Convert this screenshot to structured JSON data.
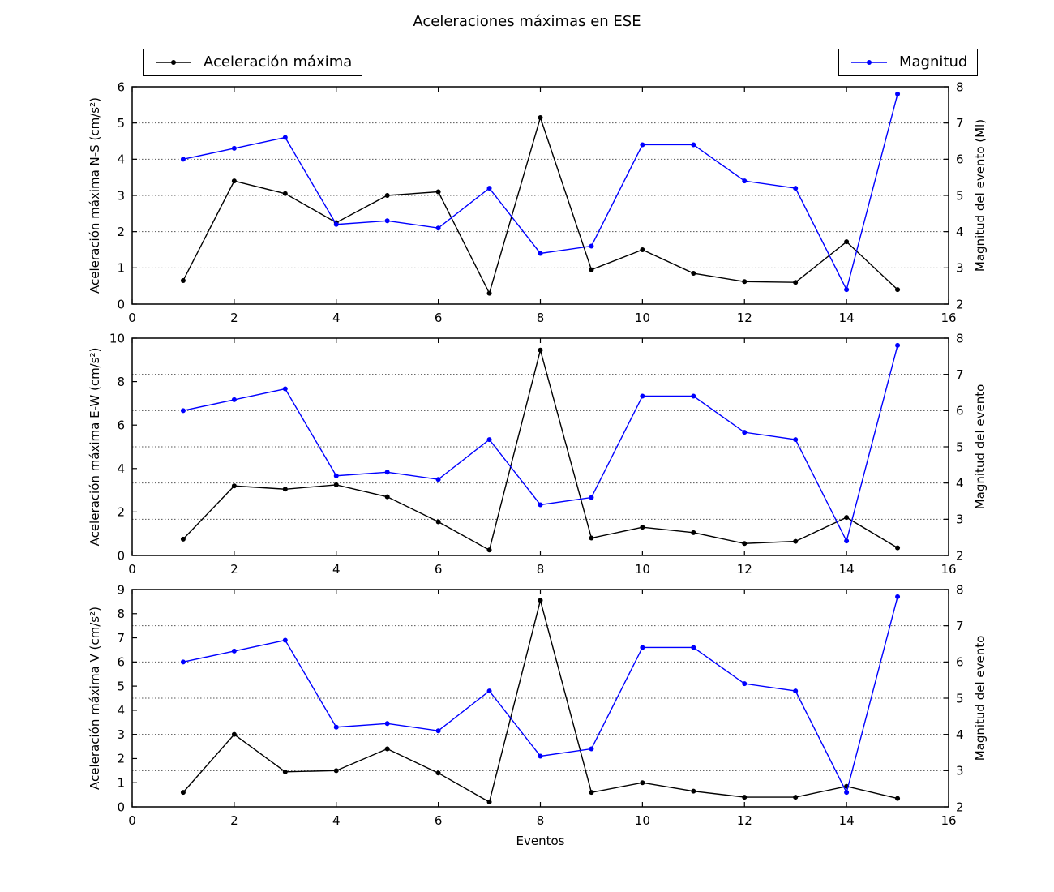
{
  "figure": {
    "title": "Aceleraciones máximas en ESE",
    "xlabel": "Eventos",
    "background": "#ffffff",
    "legends": [
      {
        "label": "Aceleración máxima",
        "color": "#000000",
        "marker": "circle"
      },
      {
        "label": "Magnitud",
        "color": "#0000ff",
        "marker": "circle"
      }
    ]
  },
  "chart_data": [
    {
      "type": "line",
      "subplot": "N-S",
      "ylabel_left": "Aceleración máxima N-S (cm/s²)",
      "ylabel_right": "Magnitud del evento (Ml)",
      "xlabel": "",
      "xlim": [
        0,
        16
      ],
      "xticks": [
        0,
        2,
        4,
        6,
        8,
        10,
        12,
        14,
        16
      ],
      "ylim_left": [
        0,
        6
      ],
      "yticks_left": [
        0,
        1,
        2,
        3,
        4,
        5,
        6
      ],
      "ylim_right": [
        2,
        8
      ],
      "yticks_right": [
        2,
        3,
        4,
        5,
        6,
        7,
        8
      ],
      "grid_right_ticks": [
        3,
        4,
        5,
        6,
        7
      ],
      "grid_style": "dotted",
      "x": [
        1,
        2,
        3,
        4,
        5,
        6,
        7,
        8,
        9,
        10,
        11,
        12,
        13,
        14,
        15
      ],
      "series": [
        {
          "name": "Aceleración máxima",
          "axis": "left",
          "color": "#000000",
          "marker": "circle",
          "values": [
            0.65,
            3.4,
            3.05,
            2.25,
            3.0,
            3.1,
            0.3,
            5.15,
            0.95,
            1.5,
            0.85,
            0.62,
            0.6,
            1.72,
            0.4
          ]
        },
        {
          "name": "Magnitud",
          "axis": "right",
          "color": "#0000ff",
          "marker": "circle",
          "values": [
            6.0,
            6.3,
            6.6,
            4.2,
            4.3,
            4.1,
            5.2,
            3.4,
            3.6,
            6.4,
            6.4,
            5.4,
            5.2,
            2.4,
            7.8
          ]
        }
      ]
    },
    {
      "type": "line",
      "subplot": "E-W",
      "ylabel_left": "Aceleración máxima E-W (cm/s²)",
      "ylabel_right": "Magnitud del evento",
      "xlabel": "",
      "xlim": [
        0,
        16
      ],
      "xticks": [
        0,
        2,
        4,
        6,
        8,
        10,
        12,
        14,
        16
      ],
      "ylim_left": [
        0,
        10
      ],
      "yticks_left": [
        0,
        2,
        4,
        6,
        8,
        10
      ],
      "ylim_right": [
        2,
        8
      ],
      "yticks_right": [
        2,
        3,
        4,
        5,
        6,
        7,
        8
      ],
      "grid_right_ticks": [
        3,
        4,
        5,
        6,
        7
      ],
      "grid_style": "dotted",
      "x": [
        1,
        2,
        3,
        4,
        5,
        6,
        7,
        8,
        9,
        10,
        11,
        12,
        13,
        14,
        15
      ],
      "series": [
        {
          "name": "Aceleración máxima",
          "axis": "left",
          "color": "#000000",
          "marker": "circle",
          "values": [
            0.75,
            3.2,
            3.05,
            3.25,
            2.7,
            1.55,
            0.25,
            9.45,
            0.8,
            1.3,
            1.05,
            0.55,
            0.65,
            1.75,
            0.35
          ]
        },
        {
          "name": "Magnitud",
          "axis": "right",
          "color": "#0000ff",
          "marker": "circle",
          "values": [
            6.0,
            6.3,
            6.6,
            4.2,
            4.3,
            4.1,
            5.2,
            3.4,
            3.6,
            6.4,
            6.4,
            5.4,
            5.2,
            2.4,
            7.8
          ]
        }
      ]
    },
    {
      "type": "line",
      "subplot": "V",
      "ylabel_left": "Aceleración máxima V (cm/s²)",
      "ylabel_right": "Magnitud del evento",
      "xlabel": "Eventos",
      "xlim": [
        0,
        16
      ],
      "xticks": [
        0,
        2,
        4,
        6,
        8,
        10,
        12,
        14,
        16
      ],
      "ylim_left": [
        0,
        9
      ],
      "yticks_left": [
        0,
        1,
        2,
        3,
        4,
        5,
        6,
        7,
        8,
        9
      ],
      "ylim_right": [
        2,
        8
      ],
      "yticks_right": [
        2,
        3,
        4,
        5,
        6,
        7,
        8
      ],
      "grid_right_ticks": [
        3,
        4,
        5,
        6,
        7
      ],
      "grid_style": "dotted",
      "x": [
        1,
        2,
        3,
        4,
        5,
        6,
        7,
        8,
        9,
        10,
        11,
        12,
        13,
        14,
        15
      ],
      "series": [
        {
          "name": "Aceleración máxima",
          "axis": "left",
          "color": "#000000",
          "marker": "circle",
          "values": [
            0.6,
            3.0,
            1.45,
            1.5,
            2.4,
            1.4,
            0.2,
            8.55,
            0.6,
            1.0,
            0.65,
            0.4,
            0.4,
            0.85,
            0.35
          ]
        },
        {
          "name": "Magnitud",
          "axis": "right",
          "color": "#0000ff",
          "marker": "circle",
          "values": [
            6.0,
            6.3,
            6.6,
            4.2,
            4.3,
            4.1,
            5.2,
            3.4,
            3.6,
            6.4,
            6.4,
            5.4,
            5.2,
            2.4,
            7.8
          ]
        }
      ]
    }
  ]
}
